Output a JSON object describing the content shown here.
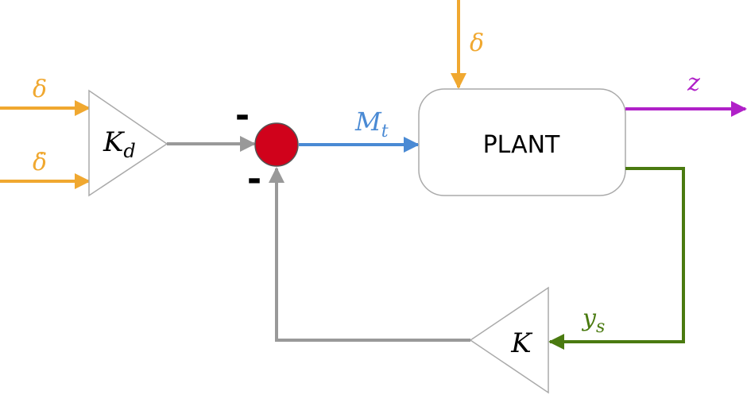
{
  "colors": {
    "disturbance": "#f0a830",
    "gray_signal": "#999999",
    "control": "#4a8ad4",
    "output_z": "#b020c8",
    "measurement": "#4a7a10",
    "summing_junction": "#d0021b",
    "block_stroke": "#aaaaaa"
  },
  "blocks": {
    "kd_gain": {
      "symbol": "K",
      "subscript": "d"
    },
    "plant": {
      "label": "PLANT"
    },
    "k_gain": {
      "symbol": "K"
    }
  },
  "summing_junction": {
    "top_sign": "-",
    "bottom_sign": "-"
  },
  "signals": {
    "delta_input": {
      "label": "δ"
    },
    "delta_dot_input": {
      "label": "δ̇"
    },
    "delta_plant": {
      "label": "δ"
    },
    "mt": {
      "symbol": "M",
      "subscript": "t"
    },
    "z": {
      "label": "z"
    },
    "ys": {
      "symbol": "y",
      "subscript": "s"
    }
  }
}
